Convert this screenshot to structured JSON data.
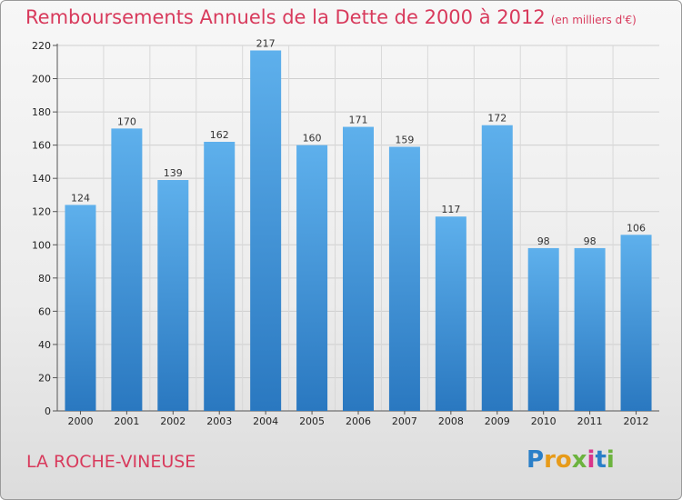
{
  "chart_data": {
    "type": "bar",
    "title": "Remboursements Annuels de la Dette de 2000 à 2012",
    "unit": "(en milliers d'€)",
    "categories": [
      "2000",
      "2001",
      "2002",
      "2003",
      "2004",
      "2005",
      "2006",
      "2007",
      "2008",
      "2009",
      "2010",
      "2011",
      "2012"
    ],
    "values": [
      124,
      170,
      139,
      162,
      217,
      160,
      171,
      159,
      117,
      172,
      98,
      98,
      106
    ],
    "ylim": [
      0,
      220
    ],
    "yticks": [
      0,
      20,
      40,
      60,
      80,
      100,
      120,
      140,
      160,
      180,
      200,
      220
    ],
    "grid": true,
    "xlabel": "",
    "ylabel": "",
    "bar_color": "#3b95d9"
  },
  "footer": {
    "place": "LA ROCHE-VINEUSE",
    "logo": "Proxiti"
  }
}
